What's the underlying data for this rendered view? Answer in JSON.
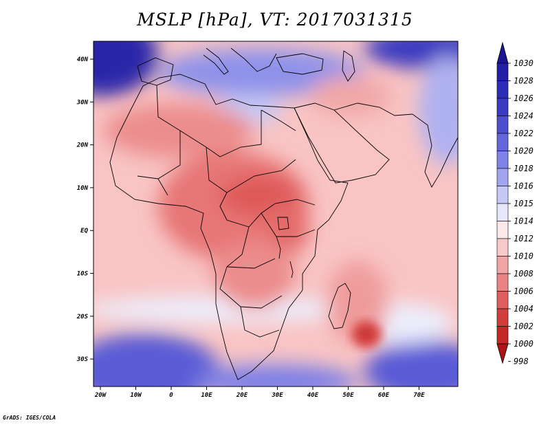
{
  "title": "MSLP [hPa], VT: 2017031315",
  "credit": "GrADS: IGES/COLA",
  "lon_labels": [
    "20W",
    "10W",
    "0",
    "10E",
    "20E",
    "30E",
    "40E",
    "50E",
    "60E",
    "70E"
  ],
  "lat_labels": [
    "40N",
    "30N",
    "20N",
    "10N",
    "EQ",
    "10S",
    "20S",
    "30S"
  ],
  "colorbar": {
    "labels": [
      "1030",
      "1028",
      "1026",
      "1024",
      "1022",
      "1020",
      "1018",
      "1016",
      "1015",
      "1014",
      "1012",
      "1010",
      "1008",
      "1006",
      "1004",
      "1002",
      "1000",
      "998"
    ],
    "colors": [
      "#1c1694",
      "#231fa6",
      "#2d2cb6",
      "#3a3ac3",
      "#4d4ed0",
      "#6466dc",
      "#7f82e6",
      "#a1a4ef",
      "#c6c8f6",
      "#e6e7fb",
      "#fbe8e8",
      "#f9c8c8",
      "#f2a5a5",
      "#ea8383",
      "#e05e5e",
      "#d43d3d",
      "#c52626",
      "#ad1414"
    ]
  },
  "chart_data": {
    "type": "heatmap",
    "title": "MSLP [hPa], VT: 2017031315",
    "variable": "MSLP",
    "units": "hPa",
    "valid_time": "2017031315",
    "lon_range": [
      -25,
      80
    ],
    "lat_range": [
      -37,
      46
    ],
    "levels": [
      998,
      1000,
      1002,
      1004,
      1006,
      1008,
      1010,
      1012,
      1014,
      1015,
      1016,
      1018,
      1020,
      1022,
      1024,
      1026,
      1028,
      1030
    ]
  }
}
